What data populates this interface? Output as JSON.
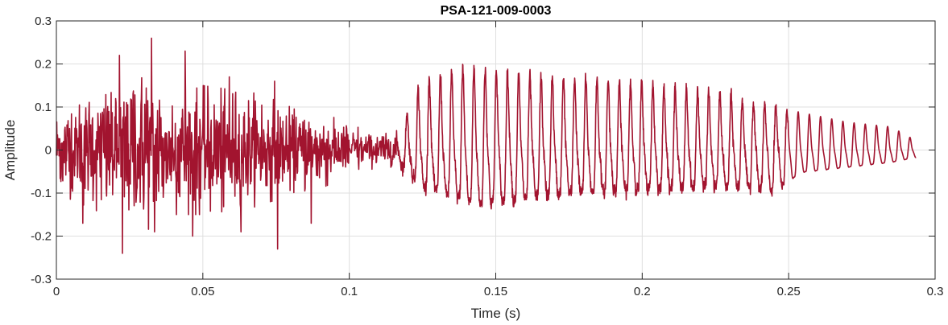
{
  "chart_data": {
    "type": "line",
    "title": "PSA-121-009-0003",
    "xlabel": "Time (s)",
    "ylabel": "Amplitude",
    "xlim": [
      0,
      0.3
    ],
    "ylim": [
      -0.3,
      0.3
    ],
    "x_ticks": [
      0,
      0.05,
      0.1,
      0.15,
      0.2,
      0.25,
      0.3
    ],
    "x_tick_labels": [
      "0",
      "0.05",
      "0.1",
      "0.15",
      "0.2",
      "0.25",
      "0.3"
    ],
    "y_ticks": [
      -0.3,
      -0.2,
      -0.1,
      0,
      0.1,
      0.2,
      0.3
    ],
    "y_tick_labels": [
      "-0.3",
      "-0.2",
      "-0.1",
      "0",
      "0.1",
      "0.2",
      "0.3"
    ],
    "grid": true,
    "line_color": "#A2142F",
    "series": [
      {
        "name": "",
        "x_end": 0.2935,
        "noise_segment": {
          "t_start": 0.0,
          "t_end": 0.116,
          "envelope": [
            [
              0.0,
              0.1
            ],
            [
              0.01,
              0.13
            ],
            [
              0.02,
              0.16
            ],
            [
              0.03,
              0.19
            ],
            [
              0.04,
              0.15
            ],
            [
              0.05,
              0.15
            ],
            [
              0.06,
              0.14
            ],
            [
              0.07,
              0.13
            ],
            [
              0.08,
              0.1
            ],
            [
              0.09,
              0.09
            ],
            [
              0.1,
              0.06
            ],
            [
              0.11,
              0.04
            ],
            [
              0.116,
              0.04
            ]
          ],
          "peaks": [
            [
              0.0215,
              0.22
            ],
            [
              0.0225,
              -0.24
            ],
            [
              0.0325,
              0.26
            ],
            [
              0.0335,
              -0.19
            ],
            [
              0.044,
              0.23
            ],
            [
              0.0465,
              -0.2
            ],
            [
              0.059,
              0.17
            ],
            [
              0.063,
              -0.19
            ],
            [
              0.0745,
              0.16
            ],
            [
              0.0755,
              -0.23
            ],
            [
              0.087,
              -0.17
            ],
            [
              0.009,
              -0.17
            ]
          ]
        },
        "oscillation_segment": {
          "t_start": 0.116,
          "t_end": 0.2935,
          "frequency_hz": 262,
          "pos_envelope": [
            [
              0.116,
              0.03
            ],
            [
              0.125,
              0.15
            ],
            [
              0.14,
              0.18
            ],
            [
              0.16,
              0.16
            ],
            [
              0.19,
              0.15
            ],
            [
              0.22,
              0.13
            ],
            [
              0.24,
              0.1
            ],
            [
              0.255,
              0.08
            ],
            [
              0.27,
              0.06
            ],
            [
              0.285,
              0.05
            ],
            [
              0.2935,
              0.02
            ]
          ],
          "neg_envelope": [
            [
              0.116,
              -0.04
            ],
            [
              0.125,
              -0.15
            ],
            [
              0.145,
              -0.22
            ],
            [
              0.17,
              -0.18
            ],
            [
              0.2,
              -0.16
            ],
            [
              0.23,
              -0.15
            ],
            [
              0.245,
              -0.16
            ],
            [
              0.255,
              -0.09
            ],
            [
              0.27,
              -0.07
            ],
            [
              0.285,
              -0.05
            ],
            [
              0.2935,
              -0.03
            ]
          ]
        }
      }
    ]
  }
}
